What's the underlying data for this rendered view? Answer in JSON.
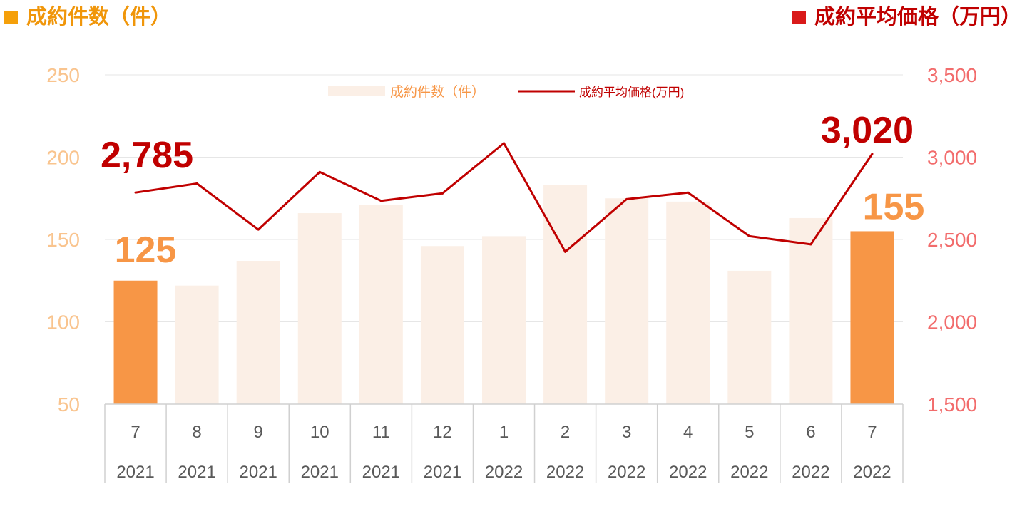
{
  "header": {
    "left_title": "成約件数（件）",
    "right_title": "成約平均価格（万円）"
  },
  "colors": {
    "bar": "#fbefe6",
    "bar_highlight": "#f79646",
    "line": "#c00000",
    "left_axis": "#f9c48e",
    "right_axis": "#f26c6c",
    "bar_label": "#f79646",
    "line_label": "#c00000",
    "tick_text": "#595959",
    "grid": "#e6e6e6"
  },
  "chart_data": {
    "type": "bar+line",
    "categories": [
      {
        "month": "7",
        "year": "2021"
      },
      {
        "month": "8",
        "year": "2021"
      },
      {
        "month": "9",
        "year": "2021"
      },
      {
        "month": "10",
        "year": "2021"
      },
      {
        "month": "11",
        "year": "2021"
      },
      {
        "month": "12",
        "year": "2021"
      },
      {
        "month": "1",
        "year": "2022"
      },
      {
        "month": "2",
        "year": "2022"
      },
      {
        "month": "3",
        "year": "2022"
      },
      {
        "month": "4",
        "year": "2022"
      },
      {
        "month": "5",
        "year": "2022"
      },
      {
        "month": "6",
        "year": "2022"
      },
      {
        "month": "7",
        "year": "2022"
      }
    ],
    "series": [
      {
        "name": "成約件数（件）",
        "type": "bar",
        "axis": "left",
        "values": [
          125,
          122,
          137,
          166,
          171,
          146,
          152,
          183,
          175,
          173,
          131,
          163,
          155
        ],
        "highlight": [
          true,
          false,
          false,
          false,
          false,
          false,
          false,
          false,
          false,
          false,
          false,
          false,
          true
        ]
      },
      {
        "name": "成約平均価格(万円)",
        "type": "line",
        "axis": "right",
        "values": [
          2785,
          2840,
          2560,
          2910,
          2735,
          2780,
          3085,
          2425,
          2745,
          2785,
          2520,
          2470,
          3020
        ]
      }
    ],
    "left_axis": {
      "ylim": [
        50,
        250
      ],
      "ticks": [
        "50",
        "100",
        "150",
        "200",
        "250"
      ]
    },
    "right_axis": {
      "ylim": [
        1500,
        3500
      ],
      "ticks": [
        "1,500",
        "2,000",
        "2,500",
        "3,000",
        "3,500"
      ]
    },
    "data_labels": {
      "first_bar": "125",
      "last_bar": "155",
      "first_line": "2,785",
      "last_line": "3,020"
    },
    "legend": {
      "position": "top-center",
      "items": [
        "成約件数（件）",
        "成約平均価格(万円)"
      ]
    },
    "grid": true
  }
}
